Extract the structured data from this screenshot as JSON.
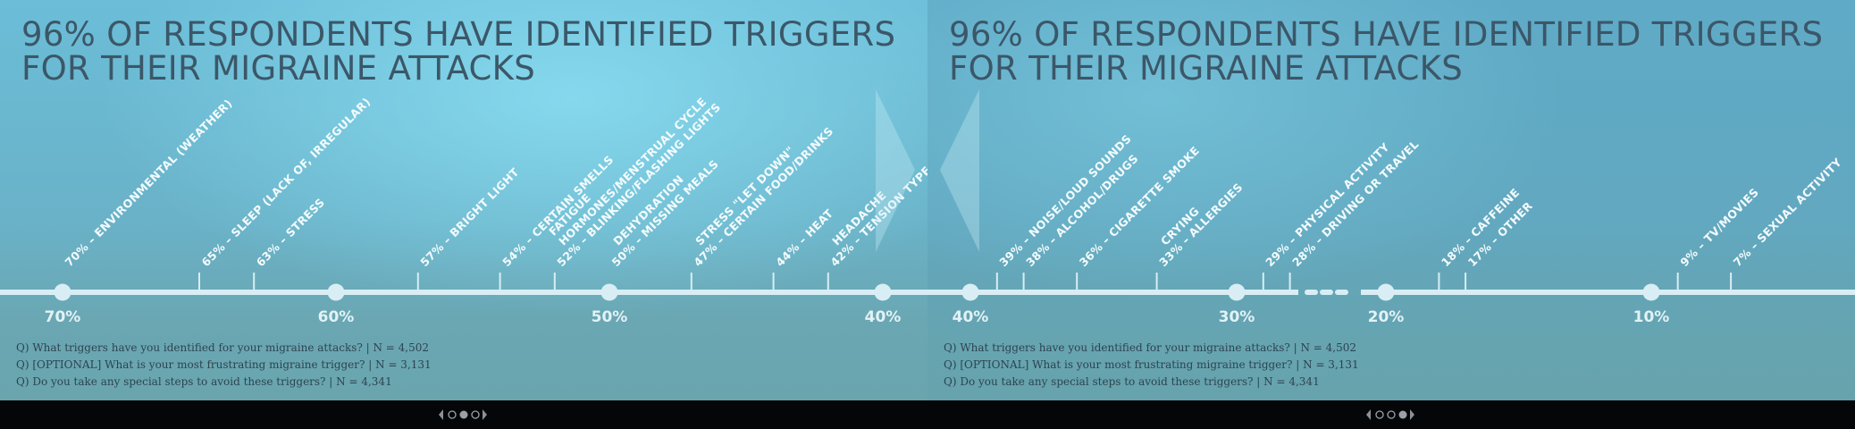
{
  "chart_data": [
    {
      "type": "timeline",
      "title": "96% OF RESPONDENTS HAVE IDENTIFIED TRIGGERS FOR THEIR MIGRAINE ATTACKS",
      "xlabel": "",
      "ylabel": "",
      "x_range": [
        71.5,
        38.2
      ],
      "major_ticks": [
        70,
        60,
        50,
        40
      ],
      "major_tick_labels": [
        "70%",
        "60%",
        "50%",
        "40%"
      ],
      "items": [
        {
          "value": 70,
          "labels": [
            "70% – ENVIRONMENTAL (WEATHER)"
          ]
        },
        {
          "value": 65,
          "labels": [
            "65% – SLEEP (LACK OF, IRREGULAR)"
          ]
        },
        {
          "value": 63,
          "labels": [
            "63% – STRESS"
          ]
        },
        {
          "value": 57,
          "labels": [
            "57% – BRIGHT LIGHT"
          ]
        },
        {
          "value": 54,
          "labels": [
            "54% – CERTAIN SMELLS"
          ]
        },
        {
          "value": 52,
          "labels": [
            "52% – BLINKING/FLASHING LIGHTS",
            "HORMONES/MENSTRUAL CYCLE",
            "FATIGUE"
          ]
        },
        {
          "value": 50,
          "labels": [
            "50% – MISSING MEALS",
            "DEHYDRATION"
          ]
        },
        {
          "value": 47,
          "labels": [
            "47% – CERTAIN FOOD/DRINKS",
            "STRESS \"LET DOWN\""
          ]
        },
        {
          "value": 44,
          "labels": [
            "44% – HEAT"
          ]
        },
        {
          "value": 42,
          "labels": [
            "42% – TENSION TYPE",
            "HEADACHE"
          ]
        }
      ]
    },
    {
      "type": "timeline",
      "title": "96% OF RESPONDENTS HAVE IDENTIFIED TRIGGERS FOR THEIR MIGRAINE ATTACKS",
      "xlabel": "",
      "ylabel": "",
      "x_range": [
        41.5,
        4.0
      ],
      "axis_break_between": [
        30,
        20
      ],
      "major_ticks": [
        40,
        30,
        20,
        10
      ],
      "major_tick_labels": [
        "40%",
        "30%",
        "20%",
        "10%"
      ],
      "items": [
        {
          "value": 39,
          "labels": [
            "39% – NOISE/LOUD SOUNDS"
          ]
        },
        {
          "value": 38,
          "labels": [
            "38% – ALCOHOL/DRUGS"
          ]
        },
        {
          "value": 36,
          "labels": [
            "36% – CIGARETTE SMOKE"
          ]
        },
        {
          "value": 33,
          "labels": [
            "33% – ALLERGIES",
            "CRYING"
          ]
        },
        {
          "value": 29,
          "labels": [
            "29% – PHYSICAL ACTIVITY"
          ]
        },
        {
          "value": 28,
          "labels": [
            "28% – DRIVING OR TRAVEL"
          ]
        },
        {
          "value": 18,
          "labels": [
            "18% – CAFFEINE"
          ]
        },
        {
          "value": 17,
          "labels": [
            "17% – OTHER"
          ]
        },
        {
          "value": 9,
          "labels": [
            "9% – TV/MOVIES"
          ]
        },
        {
          "value": 7,
          "labels": [
            "7% – SEXUAL ACTIVITY"
          ]
        }
      ]
    }
  ],
  "questions": [
    "Q) What triggers have you identified for your migraine attacks? | N = 4,502",
    "Q) [OPTIONAL] What is your most frustrating migraine trigger? | N = 3,131",
    "Q) Do you take any special steps to avoid these triggers? | N = 4,341"
  ],
  "colors": {
    "axis": "#d8eef4",
    "item_label": "#f3fbfd",
    "tick_label": "#e2f2f6",
    "title": "#3b5768",
    "question": "#2c4450",
    "footer": "#050608"
  },
  "navigation": {
    "left_panel_active_dot": 1,
    "right_panel_active_dot": 2,
    "prev_icon": "chevron-left-icon",
    "next_icon": "chevron-right-icon"
  }
}
